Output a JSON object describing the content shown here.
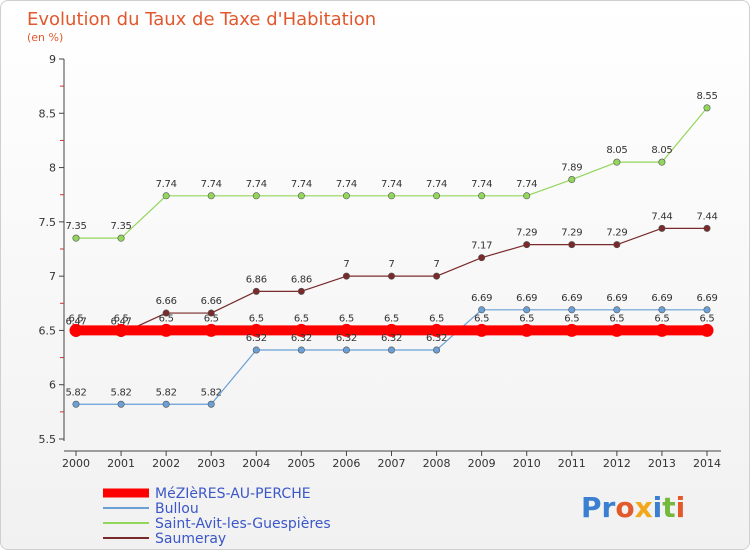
{
  "chart_data": {
    "type": "line",
    "title": "Evolution du Taux de Taxe d'Habitation",
    "subtitle": "(en %)",
    "x": [
      "2000",
      "2001",
      "2002",
      "2003",
      "2004",
      "2005",
      "2006",
      "2007",
      "2008",
      "2009",
      "2010",
      "2011",
      "2012",
      "2013",
      "2014"
    ],
    "yticks": [
      "5.5",
      "6",
      "6.5",
      "7",
      "7.5",
      "8",
      "8.5",
      "9"
    ],
    "ylim": [
      5.5,
      9
    ],
    "grid": false,
    "legend_position": "bottom-left",
    "series": [
      {
        "name": "MéZIèRES-AU-PERCHE",
        "color": "#ff0000",
        "width": 10,
        "values": [
          6.5,
          6.5,
          6.5,
          6.5,
          6.5,
          6.5,
          6.5,
          6.5,
          6.5,
          6.5,
          6.5,
          6.5,
          6.5,
          6.5,
          6.5
        ],
        "labels": [
          "6.5",
          "6.5",
          "6.5",
          "6.5",
          "6.5",
          "6.5",
          "6.5",
          "6.5",
          "6.5",
          "6.5",
          "6.5",
          "6.5",
          "6.5",
          "6.5",
          "6.5"
        ]
      },
      {
        "name": "Bullou",
        "color": "#6aa0d6",
        "width": 1.2,
        "values": [
          5.82,
          5.82,
          5.82,
          5.82,
          6.32,
          6.32,
          6.32,
          6.32,
          6.32,
          6.69,
          6.69,
          6.69,
          6.69,
          6.69,
          6.69
        ],
        "labels": [
          "5.82",
          "5.82",
          "5.82",
          "5.82",
          "6.32",
          "6.32",
          "6.32",
          "6.32",
          "6.32",
          "6.69",
          "6.69",
          "6.69",
          "6.69",
          "6.69",
          "6.69"
        ]
      },
      {
        "name": "Saint-Avit-les-Guespières",
        "color": "#92d65a",
        "width": 1.2,
        "values": [
          7.35,
          7.35,
          7.74,
          7.74,
          7.74,
          7.74,
          7.74,
          7.74,
          7.74,
          7.74,
          7.74,
          7.89,
          8.05,
          8.05,
          8.55
        ],
        "labels": [
          "7.35",
          "7.35",
          "7.74",
          "7.74",
          "7.74",
          "7.74",
          "7.74",
          "7.74",
          "7.74",
          "7.74",
          "7.74",
          "7.89",
          "8.05",
          "8.05",
          "8.55"
        ]
      },
      {
        "name": "Saumeray",
        "color": "#7a2a2a",
        "width": 1.2,
        "values": [
          6.47,
          6.47,
          6.66,
          6.66,
          6.86,
          6.86,
          7,
          7,
          7,
          7.17,
          7.29,
          7.29,
          7.29,
          7.44,
          7.44
        ],
        "labels": [
          "6.47",
          "6.47",
          "6.66",
          "6.66",
          "6.86",
          "6.86",
          "7",
          "7",
          "7",
          "7.17",
          "7.29",
          "7.29",
          "7.29",
          "7.44",
          "7.44"
        ]
      }
    ]
  },
  "logo": {
    "text_p": "Pr",
    "text_o": "o",
    "text_x": "x",
    "text_i": "i",
    "text_t": "t",
    "text_i2": "i"
  }
}
